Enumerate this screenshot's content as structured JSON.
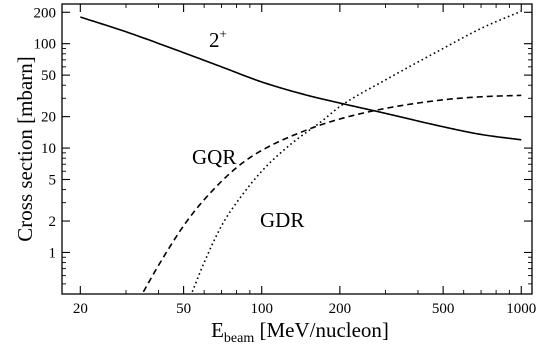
{
  "chart_data": {
    "type": "line",
    "title": "",
    "xlabel_main": "E",
    "xlabel_sub": "beam",
    "xlabel_rest": " [MeV/nucleon]",
    "ylabel": "Cross section [mbarn]",
    "x_scale": "log",
    "y_scale": "log",
    "xlim": [
      17,
      1100
    ],
    "ylim": [
      0.4,
      240
    ],
    "grid": false,
    "x_ticks": [
      {
        "value": 20,
        "label": "20"
      },
      {
        "value": 50,
        "label": "50"
      },
      {
        "value": 100,
        "label": "100"
      },
      {
        "value": 200,
        "label": "200"
      },
      {
        "value": 500,
        "label": "500"
      },
      {
        "value": 1000,
        "label": "1000"
      }
    ],
    "y_ticks": [
      {
        "value": 1,
        "label": "1"
      },
      {
        "value": 2,
        "label": "2"
      },
      {
        "value": 5,
        "label": "5"
      },
      {
        "value": 10,
        "label": "10"
      },
      {
        "value": 20,
        "label": "20"
      },
      {
        "value": 50,
        "label": "50"
      },
      {
        "value": 100,
        "label": "100"
      },
      {
        "value": 200,
        "label": "200"
      }
    ],
    "series": [
      {
        "name": "2+",
        "style": "solid",
        "x": [
          20,
          30,
          50,
          70,
          100,
          150,
          200,
          300,
          500,
          700,
          1000
        ],
        "y": [
          180,
          130,
          82,
          60,
          43,
          32,
          27,
          21.5,
          16,
          13.5,
          12
        ]
      },
      {
        "name": "GQR",
        "style": "dashed",
        "x": [
          35,
          40,
          50,
          60,
          80,
          100,
          150,
          200,
          300,
          500,
          700,
          1000
        ],
        "y": [
          0.42,
          0.75,
          1.8,
          3.2,
          6.5,
          9.5,
          15,
          19,
          24,
          29,
          31,
          32
        ]
      },
      {
        "name": "GDR",
        "style": "dotted",
        "x": [
          54,
          60,
          70,
          80,
          100,
          130,
          170,
          200,
          300,
          500,
          700,
          1000
        ],
        "y": [
          0.42,
          0.8,
          1.8,
          3,
          6,
          11,
          18,
          25,
          45,
          90,
          140,
          205
        ]
      }
    ],
    "curve_labels": [
      {
        "series": "2+",
        "text_main": "2",
        "text_sup": "+"
      },
      {
        "series": "GQR",
        "text_main": "GQR",
        "text_sup": ""
      },
      {
        "series": "GDR",
        "text_main": "GDR",
        "text_sup": ""
      }
    ]
  }
}
